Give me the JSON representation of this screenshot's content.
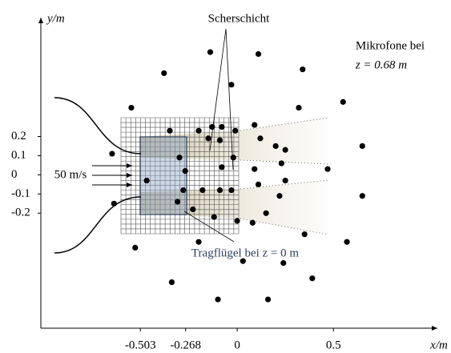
{
  "chart_data": {
    "type": "scatter",
    "x_label": "x/m",
    "y_label": "y/m",
    "annotations": [
      "Scherschicht",
      "Mikrofone bei",
      "z = 0.68 m",
      "Tragflügel bei z = 0 m",
      "50 m/s"
    ],
    "color": "#000000",
    "xlim": [
      -1.02,
      1.04
    ],
    "ylim": [
      -0.8,
      0.82
    ],
    "xticks": [
      -0.503,
      -0.268,
      0,
      0.5
    ],
    "yticks": [
      0.2,
      0.1,
      0,
      -0.1,
      -0.2
    ],
    "x": [
      -0.14,
      0.11,
      -0.38,
      0.34,
      -0.03,
      0.32,
      0.55,
      -0.55,
      -0.13,
      -0.08,
      0.09,
      -0.35,
      -0.2,
      -0.09,
      -0.01,
      -0.15,
      0.12,
      0.2,
      0.65,
      -0.65,
      0.25,
      -0.3,
      -0.27,
      -0.08,
      -0.02,
      0.09,
      0.23,
      0.47,
      -0.47,
      -0.28,
      -0.18,
      -0.09,
      -0.03,
      0.11,
      0.25,
      0.22,
      0.65,
      -0.64,
      -0.31,
      -0.23,
      -0.12,
      0.0,
      0.15,
      0.08,
      -0.53,
      0.35,
      0.57,
      -0.2,
      -0.34,
      0.39,
      0.03,
      0.24,
      -0.1,
      0.16
    ],
    "y": [
      0.64,
      0.63,
      0.53,
      0.55,
      0.47,
      0.35,
      0.38,
      0.35,
      0.25,
      0.25,
      0.26,
      0.23,
      0.23,
      0.18,
      0.23,
      0.19,
      0.19,
      0.15,
      0.15,
      0.11,
      0.13,
      0.09,
      0.02,
      0.04,
      0.09,
      0.03,
      0.06,
      0.03,
      -0.03,
      -0.08,
      -0.08,
      -0.08,
      -0.08,
      -0.05,
      -0.03,
      -0.11,
      -0.11,
      -0.15,
      -0.14,
      -0.18,
      -0.22,
      -0.24,
      -0.2,
      -0.25,
      -0.38,
      -0.31,
      -0.35,
      -0.35,
      -0.56,
      -0.54,
      -0.45,
      -0.46,
      -0.65,
      -0.65
    ]
  }
}
